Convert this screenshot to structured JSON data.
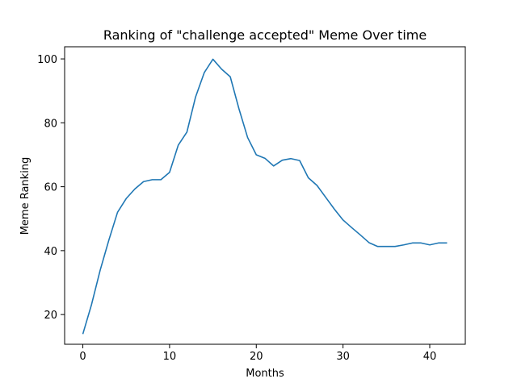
{
  "chart_data": {
    "type": "line",
    "title": "Ranking of \"challenge accepted\" Meme Over time",
    "xlabel": "Months",
    "ylabel": "Meme Ranking",
    "xlim": [
      -2.1,
      44.1
    ],
    "ylim": [
      10.7,
      103.8
    ],
    "xticks": [
      0,
      10,
      20,
      30,
      40
    ],
    "yticks": [
      20,
      40,
      60,
      80,
      100
    ],
    "grid": false,
    "legend": "none",
    "series": [
      {
        "color": "#1f77b4",
        "x": [
          0,
          1,
          2,
          3,
          4,
          5,
          6,
          7,
          8,
          9,
          10,
          11,
          12,
          13,
          14,
          15,
          16,
          17,
          18,
          19,
          20,
          21,
          22,
          23,
          24,
          25,
          26,
          27,
          28,
          29,
          30,
          31,
          32,
          33,
          34,
          35,
          36,
          37,
          38,
          39,
          40,
          41,
          42
        ],
        "values": [
          13.9,
          23.1,
          33.9,
          43.3,
          52.0,
          56.3,
          59.3,
          61.6,
          62.2,
          62.2,
          64.5,
          73.0,
          77.1,
          88.1,
          95.7,
          99.9,
          96.8,
          94.4,
          84.4,
          75.4,
          70.0,
          68.9,
          66.5,
          68.3,
          68.8,
          68.2,
          62.8,
          60.4,
          56.7,
          53.0,
          49.6,
          47.2,
          44.9,
          42.5,
          41.3,
          41.3,
          41.3,
          41.8,
          42.4,
          42.4,
          41.8,
          42.4,
          42.4
        ]
      }
    ]
  }
}
